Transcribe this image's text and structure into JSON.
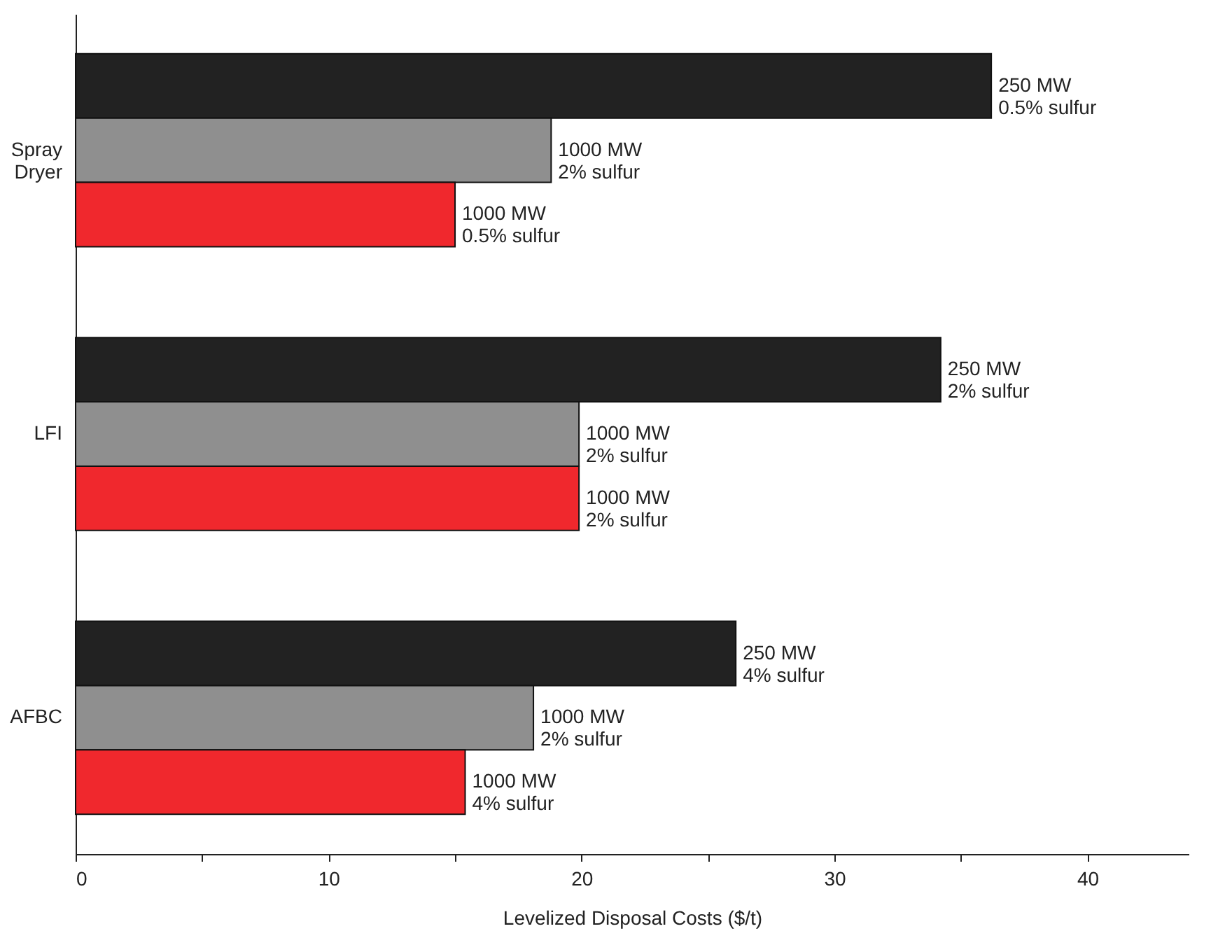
{
  "chart_data": {
    "type": "bar",
    "orientation": "horizontal",
    "xlabel": "Levelized Disposal Costs ($/t)",
    "categories": [
      "Spray Dryer",
      "LFI",
      "AFBC"
    ],
    "series": [
      {
        "color": "#222222",
        "values": [
          36.2,
          34.2,
          26.1
        ]
      },
      {
        "color": "#8f8f8f",
        "values": [
          18.8,
          19.9,
          18.1
        ]
      },
      {
        "color": "#f0282d",
        "values": [
          15.0,
          19.9,
          15.4
        ]
      }
    ],
    "annotations": [
      "250 MW\n0.5% sulfur",
      "1000 MW\n2% sulfur",
      "1000 MW\n0.5% sulfur",
      "250 MW\n2% sulfur",
      "1000 MW\n2% sulfur",
      "1000 MW\n2% sulfur",
      "250 MW\n4% sulfur",
      "1000 MW\n2% sulfur",
      "1000 MW\n4% sulfur"
    ],
    "xlim": [
      0,
      44
    ],
    "xticks": [
      0,
      {
        "value": 5,
        "label": null
      },
      10,
      {
        "value": 15,
        "label": null
      },
      20,
      {
        "value": 25,
        "label": null
      },
      30,
      {
        "value": 35,
        "label": null
      },
      40
    ],
    "grid": false,
    "legend": false
  }
}
